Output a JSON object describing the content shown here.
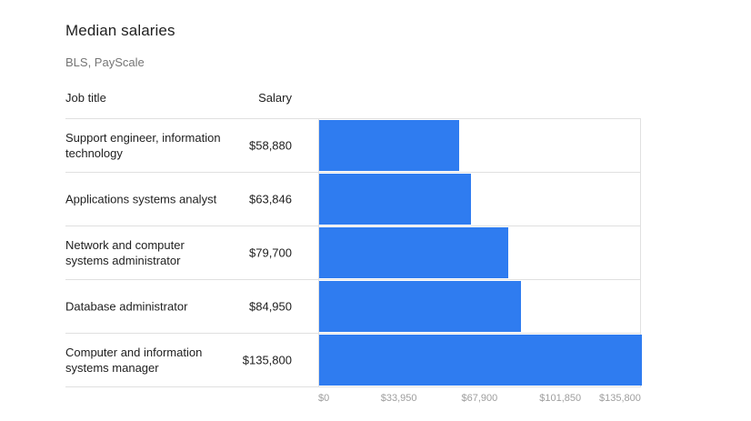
{
  "chart_data": {
    "type": "bar",
    "orientation": "horizontal",
    "title": "Median salaries",
    "subtitle": "BLS, PayScale",
    "column_headers": {
      "job": "Job title",
      "salary": "Salary"
    },
    "categories": [
      "Support engineer, information technology",
      "Applications systems analyst",
      "Network and computer systems administrator",
      "Database administrator",
      "Computer and information systems manager"
    ],
    "values": [
      58880,
      63846,
      79700,
      84950,
      135800
    ],
    "value_labels": [
      "$58,880",
      "$63,846",
      "$79,700",
      "$84,950",
      "$135,800"
    ],
    "xlim": [
      0,
      135800
    ],
    "x_ticks": [
      0,
      33950,
      67900,
      101850,
      135800
    ],
    "x_tick_labels": [
      "$0",
      "$33,950",
      "$67,900",
      "$101,850",
      "$135,800"
    ],
    "bar_color": "#2f7cf0",
    "grid": false
  }
}
